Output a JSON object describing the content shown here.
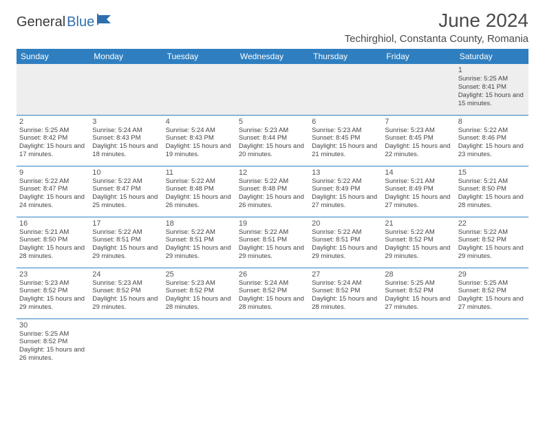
{
  "logo": {
    "text1": "General",
    "text2": "Blue"
  },
  "title": "June 2024",
  "location": "Techirghiol, Constanta County, Romania",
  "colors": {
    "header_bg": "#2f7fc0",
    "header_text": "#ffffff",
    "border": "#2f7fc0",
    "firstrow_bg": "#eeeeee",
    "logo_accent": "#2f6fb0",
    "body_text": "#444444"
  },
  "weekdays": [
    "Sunday",
    "Monday",
    "Tuesday",
    "Wednesday",
    "Thursday",
    "Friday",
    "Saturday"
  ],
  "weeks": [
    [
      null,
      null,
      null,
      null,
      null,
      null,
      {
        "d": "1",
        "sr": "5:25 AM",
        "ss": "8:41 PM",
        "dl": "15 hours and 15 minutes."
      }
    ],
    [
      {
        "d": "2",
        "sr": "5:25 AM",
        "ss": "8:42 PM",
        "dl": "15 hours and 17 minutes."
      },
      {
        "d": "3",
        "sr": "5:24 AM",
        "ss": "8:43 PM",
        "dl": "15 hours and 18 minutes."
      },
      {
        "d": "4",
        "sr": "5:24 AM",
        "ss": "8:43 PM",
        "dl": "15 hours and 19 minutes."
      },
      {
        "d": "5",
        "sr": "5:23 AM",
        "ss": "8:44 PM",
        "dl": "15 hours and 20 minutes."
      },
      {
        "d": "6",
        "sr": "5:23 AM",
        "ss": "8:45 PM",
        "dl": "15 hours and 21 minutes."
      },
      {
        "d": "7",
        "sr": "5:23 AM",
        "ss": "8:45 PM",
        "dl": "15 hours and 22 minutes."
      },
      {
        "d": "8",
        "sr": "5:22 AM",
        "ss": "8:46 PM",
        "dl": "15 hours and 23 minutes."
      }
    ],
    [
      {
        "d": "9",
        "sr": "5:22 AM",
        "ss": "8:47 PM",
        "dl": "15 hours and 24 minutes."
      },
      {
        "d": "10",
        "sr": "5:22 AM",
        "ss": "8:47 PM",
        "dl": "15 hours and 25 minutes."
      },
      {
        "d": "11",
        "sr": "5:22 AM",
        "ss": "8:48 PM",
        "dl": "15 hours and 26 minutes."
      },
      {
        "d": "12",
        "sr": "5:22 AM",
        "ss": "8:48 PM",
        "dl": "15 hours and 26 minutes."
      },
      {
        "d": "13",
        "sr": "5:22 AM",
        "ss": "8:49 PM",
        "dl": "15 hours and 27 minutes."
      },
      {
        "d": "14",
        "sr": "5:21 AM",
        "ss": "8:49 PM",
        "dl": "15 hours and 27 minutes."
      },
      {
        "d": "15",
        "sr": "5:21 AM",
        "ss": "8:50 PM",
        "dl": "15 hours and 28 minutes."
      }
    ],
    [
      {
        "d": "16",
        "sr": "5:21 AM",
        "ss": "8:50 PM",
        "dl": "15 hours and 28 minutes."
      },
      {
        "d": "17",
        "sr": "5:22 AM",
        "ss": "8:51 PM",
        "dl": "15 hours and 29 minutes."
      },
      {
        "d": "18",
        "sr": "5:22 AM",
        "ss": "8:51 PM",
        "dl": "15 hours and 29 minutes."
      },
      {
        "d": "19",
        "sr": "5:22 AM",
        "ss": "8:51 PM",
        "dl": "15 hours and 29 minutes."
      },
      {
        "d": "20",
        "sr": "5:22 AM",
        "ss": "8:51 PM",
        "dl": "15 hours and 29 minutes."
      },
      {
        "d": "21",
        "sr": "5:22 AM",
        "ss": "8:52 PM",
        "dl": "15 hours and 29 minutes."
      },
      {
        "d": "22",
        "sr": "5:22 AM",
        "ss": "8:52 PM",
        "dl": "15 hours and 29 minutes."
      }
    ],
    [
      {
        "d": "23",
        "sr": "5:23 AM",
        "ss": "8:52 PM",
        "dl": "15 hours and 29 minutes."
      },
      {
        "d": "24",
        "sr": "5:23 AM",
        "ss": "8:52 PM",
        "dl": "15 hours and 29 minutes."
      },
      {
        "d": "25",
        "sr": "5:23 AM",
        "ss": "8:52 PM",
        "dl": "15 hours and 28 minutes."
      },
      {
        "d": "26",
        "sr": "5:24 AM",
        "ss": "8:52 PM",
        "dl": "15 hours and 28 minutes."
      },
      {
        "d": "27",
        "sr": "5:24 AM",
        "ss": "8:52 PM",
        "dl": "15 hours and 28 minutes."
      },
      {
        "d": "28",
        "sr": "5:25 AM",
        "ss": "8:52 PM",
        "dl": "15 hours and 27 minutes."
      },
      {
        "d": "29",
        "sr": "5:25 AM",
        "ss": "8:52 PM",
        "dl": "15 hours and 27 minutes."
      }
    ],
    [
      {
        "d": "30",
        "sr": "5:25 AM",
        "ss": "8:52 PM",
        "dl": "15 hours and 26 minutes."
      },
      null,
      null,
      null,
      null,
      null,
      null
    ]
  ],
  "labels": {
    "sunrise": "Sunrise:",
    "sunset": "Sunset:",
    "daylight": "Daylight:"
  }
}
